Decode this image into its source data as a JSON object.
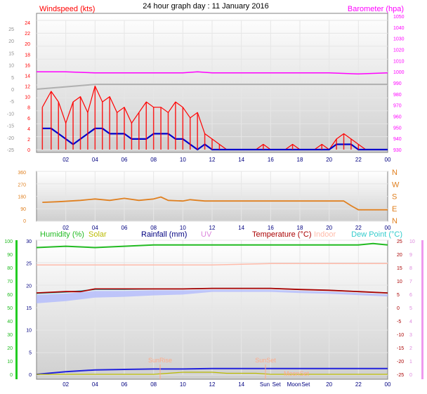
{
  "page_title": "24 hour graph day : 11 January 2016",
  "top_panel": {
    "wind_label": "Windspeed (kts)",
    "baro_label": "Barometer (hpa)",
    "outer_ticks": [
      "25",
      "20",
      "15",
      "10",
      "5",
      "0",
      "-5",
      "-10",
      "-15",
      "-20",
      "-25"
    ],
    "wind_ticks": [
      "24",
      "22",
      "20",
      "18",
      "16",
      "14",
      "12",
      "10",
      "8",
      "6",
      "4",
      "2",
      "0"
    ],
    "baro_ticks": [
      "1050",
      "1040",
      "1030",
      "1020",
      "1010",
      "1000",
      "990",
      "980",
      "970",
      "960",
      "950",
      "940",
      "930"
    ],
    "x_ticks": [
      "02",
      "04",
      "06",
      "08",
      "10",
      "12",
      "14",
      "16",
      "18",
      "20",
      "22",
      "00"
    ]
  },
  "mid_panel": {
    "deg_ticks": [
      "360",
      "270",
      "180",
      "90",
      "0"
    ],
    "compass": [
      "N",
      "W",
      "S",
      "E",
      "N"
    ],
    "x_ticks": [
      "02",
      "04",
      "06",
      "08",
      "10",
      "12",
      "14",
      "16",
      "18",
      "20",
      "22",
      "00"
    ]
  },
  "bottom_panel": {
    "legend": {
      "humidity": "Humidity (%)",
      "solar": "Solar",
      "rainfall": "Rainfall (mm)",
      "uv": "UV",
      "temperature": "Temperature (°C)",
      "indoor": "Indoor",
      "dewpoint": "Dew Point (°C)"
    },
    "humidity_ticks": [
      "100",
      "90",
      "80",
      "70",
      "60",
      "50",
      "40",
      "30",
      "20",
      "10",
      "0"
    ],
    "rain_ticks": [
      "30",
      "25",
      "20",
      "15",
      "10",
      "5",
      "0"
    ],
    "temp_ticks": [
      "25",
      "20",
      "15",
      "10",
      "5",
      "0",
      "-5",
      "-10",
      "-15",
      "-20",
      "-25"
    ],
    "uv_ticks": [
      "10",
      "9",
      "8",
      "7",
      "6",
      "5",
      "4",
      "3",
      "2",
      "1",
      "0"
    ],
    "x_ticks": [
      "02",
      "04",
      "06",
      "08",
      "10",
      "12",
      "14",
      "Sun",
      "Set",
      "Moon",
      "Set",
      "20",
      "22",
      "00"
    ],
    "sunrise_label": "SunRise",
    "sunset_label": "SunSet",
    "moonset_label": "MoonSet"
  },
  "colors": {
    "wind": "#ff0000",
    "wind_avg": "#0000cc",
    "barometer": "#ff00ff",
    "outer": "#b0b0b0",
    "direction": "#e08020",
    "humidity": "#22bb22",
    "solar": "#bbbb00",
    "rainfall": "#000080",
    "uv": "#dd88dd",
    "temperature": "#aa0000",
    "indoor": "#ffbbaa",
    "dewpoint": "#33cccc",
    "dew_fill": "#aab4ff",
    "rain_line": "#2222dd",
    "axis": "#606060"
  },
  "chart_data": [
    {
      "type": "line",
      "title": "24 hour graph day : 11 January 2016",
      "x_unit": "hour",
      "xlim": [
        0,
        24
      ],
      "ylabel_left": "Windspeed (kts)",
      "ylabel_right": "Barometer (hpa)",
      "ylim_wind": [
        0,
        25
      ],
      "ylim_baro": [
        930,
        1050
      ],
      "series": [
        {
          "name": "Windspeed (kts)",
          "x": [
            0.4,
            1.0,
            1.5,
            2.0,
            2.5,
            3.0,
            3.5,
            4.0,
            4.5,
            5.0,
            5.5,
            6.0,
            6.5,
            7.0,
            7.5,
            8.0,
            8.5,
            9.0,
            9.5,
            10.0,
            10.5,
            11.0,
            11.5,
            12.0,
            12.5,
            13.0,
            14.0,
            15.0,
            15.5,
            16.0,
            17.0,
            17.5,
            18.0,
            19.0,
            19.5,
            20.0,
            20.5,
            21.0,
            21.5,
            22.0,
            22.5,
            23.0,
            24.0
          ],
          "y": [
            8,
            11,
            9,
            5,
            9,
            10,
            7,
            12,
            9,
            10,
            7,
            8,
            5,
            7,
            9,
            8,
            8,
            7,
            9,
            8,
            6,
            7,
            3,
            2,
            1,
            0,
            0,
            0,
            1,
            0,
            0,
            1,
            0,
            0,
            1,
            0,
            2,
            3,
            2,
            1,
            0,
            0,
            0
          ]
        },
        {
          "name": "Wind average",
          "x": [
            0.4,
            1.0,
            1.5,
            2.0,
            2.5,
            3.0,
            3.5,
            4.0,
            4.5,
            5.0,
            5.5,
            6.0,
            6.5,
            7.0,
            7.5,
            8.0,
            8.5,
            9.0,
            9.5,
            10.0,
            10.5,
            11.0,
            11.5,
            12.0,
            13.0,
            14.0,
            15.0,
            16.0,
            17.0,
            18.0,
            19.0,
            20.0,
            20.5,
            21.0,
            21.5,
            22.0,
            23.0,
            24.0
          ],
          "y": [
            4,
            4,
            3,
            2,
            1,
            2,
            3,
            4,
            4,
            3,
            3,
            3,
            2,
            2,
            2,
            3,
            3,
            3,
            2,
            2,
            1,
            0,
            1,
            0,
            0,
            0,
            0,
            0,
            0,
            0,
            0,
            0,
            1,
            1,
            1,
            0,
            0,
            0
          ]
        },
        {
          "name": "Barometer (hpa)",
          "x": [
            0,
            2,
            4,
            6,
            8,
            10,
            11,
            12,
            14,
            16,
            18,
            20,
            22,
            24
          ],
          "y": [
            1000,
            1000,
            999,
            999,
            999,
            999,
            1000,
            999,
            999,
            999,
            999,
            999,
            998,
            999
          ]
        },
        {
          "name": "Outer trace",
          "x": [
            0,
            2,
            4,
            6,
            8,
            10,
            12,
            14,
            16,
            18,
            20,
            22,
            24
          ],
          "y": [
            0,
            1,
            2,
            2,
            2,
            2,
            2,
            2,
            2,
            2,
            2,
            2,
            2
          ]
        }
      ]
    },
    {
      "type": "line",
      "xlim": [
        0,
        24
      ],
      "ylim": [
        0,
        360
      ],
      "series": [
        {
          "name": "Wind direction",
          "x": [
            0.4,
            1.5,
            3.0,
            4.0,
            5.0,
            6.0,
            7.0,
            8.0,
            8.5,
            9.0,
            10.0,
            10.5,
            11.0,
            11.5,
            12.0,
            14.0,
            16.0,
            18.0,
            19.0,
            20.0,
            20.5,
            21.0,
            21.5,
            22.0,
            24.0
          ],
          "y": [
            135,
            140,
            150,
            160,
            150,
            165,
            150,
            160,
            175,
            150,
            145,
            155,
            150,
            145,
            145,
            145,
            145,
            145,
            145,
            145,
            145,
            145,
            110,
            80,
            80
          ]
        }
      ]
    },
    {
      "type": "line",
      "xlim": [
        0,
        24
      ],
      "ylim_humidity": [
        0,
        100
      ],
      "ylim_rain": [
        0,
        30
      ],
      "ylim_temp": [
        -25,
        25
      ],
      "series": [
        {
          "name": "Humidity (%)",
          "x": [
            0,
            2,
            4,
            6,
            8,
            10,
            12,
            14,
            16,
            18,
            20,
            22,
            23,
            24
          ],
          "y": [
            95,
            96,
            95,
            96,
            97,
            97,
            97,
            97,
            97,
            97,
            97,
            97,
            98,
            97
          ]
        },
        {
          "name": "Temperature (°C)",
          "x": [
            0,
            2,
            3,
            4,
            6,
            8,
            10,
            12,
            14,
            16,
            18,
            20,
            22,
            24
          ],
          "y": [
            5.5,
            6,
            6,
            7,
            7,
            7,
            7,
            7.2,
            7.2,
            7.2,
            6.8,
            6.5,
            6,
            5.5
          ]
        },
        {
          "name": "Dew Point (°C)",
          "x": [
            0,
            2,
            4,
            6,
            8,
            10,
            12,
            14,
            16,
            18,
            20,
            22,
            24
          ],
          "y": [
            5.3,
            5.8,
            6.8,
            6.8,
            7,
            7,
            7.2,
            7.2,
            7.2,
            6.8,
            6.5,
            6,
            5.5
          ]
        },
        {
          "name": "Indoor",
          "x": [
            0,
            4,
            8,
            12,
            16,
            20,
            24
          ],
          "y": [
            16,
            16,
            16,
            16,
            16.5,
            16.5,
            16.5
          ]
        },
        {
          "name": "Rainfall (mm)",
          "x": [
            0,
            1,
            2,
            4,
            6,
            8,
            10,
            12,
            16,
            20,
            24
          ],
          "y": [
            0,
            0.3,
            0.6,
            1,
            1.1,
            1.2,
            1.2,
            1.3,
            1.3,
            1.3,
            1.3
          ]
        },
        {
          "name": "Solar",
          "x": [
            0,
            8,
            9,
            10,
            11,
            12,
            13,
            14,
            15,
            16,
            17,
            24
          ],
          "y": [
            0,
            0,
            1,
            2,
            2,
            2,
            1,
            1,
            1,
            0,
            0,
            0
          ]
        }
      ]
    }
  ]
}
